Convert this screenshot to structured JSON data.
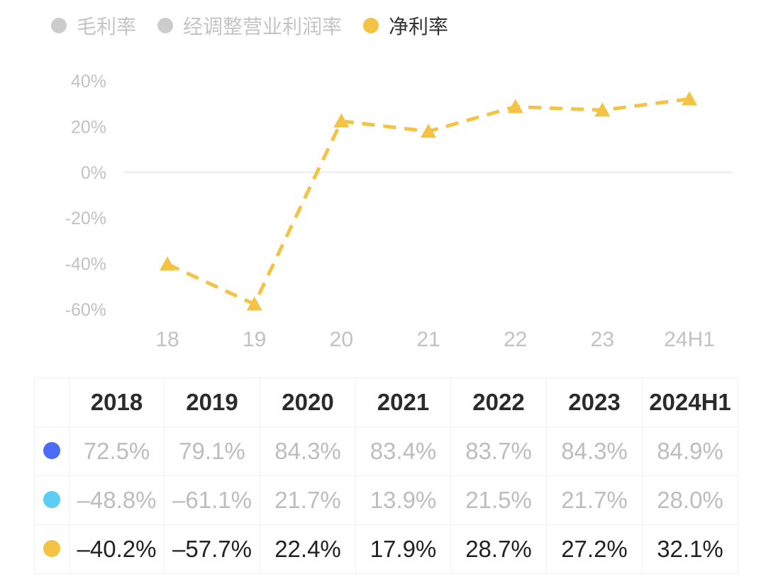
{
  "legend": [
    {
      "label": "毛利率",
      "active": false,
      "color": "#cccccc"
    },
    {
      "label": "经调整营业利润率",
      "active": false,
      "color": "#cccccc"
    },
    {
      "label": "净利率",
      "active": true,
      "color": "#f5c343"
    }
  ],
  "chart_data": {
    "type": "line",
    "categories": [
      "18",
      "19",
      "20",
      "21",
      "22",
      "23",
      "24H1"
    ],
    "series": [
      {
        "name": "净利率",
        "values": [
          -40.2,
          -57.7,
          22.4,
          17.9,
          28.7,
          27.2,
          32.1
        ],
        "color": "#f5c343",
        "style": "dashed",
        "marker": "triangle"
      }
    ],
    "y_ticks": [
      "40%",
      "20%",
      "0%",
      "-20%",
      "-40%",
      "-60%"
    ],
    "y_tick_values": [
      40,
      20,
      0,
      -20,
      -40,
      -60
    ],
    "ylim": [
      -60,
      40
    ],
    "grid": "zero-line only",
    "legend_position": "top-left"
  },
  "table": {
    "headers": [
      "2018",
      "2019",
      "2020",
      "2021",
      "2022",
      "2023",
      "2024H1"
    ],
    "rows": [
      {
        "marker_color": "#4a6cf7",
        "style": "muted",
        "cells": [
          "72.5%",
          "79.1%",
          "84.3%",
          "83.4%",
          "83.7%",
          "84.3%",
          "84.9%"
        ]
      },
      {
        "marker_color": "#5ccdf5",
        "style": "muted",
        "cells": [
          "–48.8%",
          "–61.1%",
          "21.7%",
          "13.9%",
          "21.5%",
          "21.7%",
          "28.0%"
        ]
      },
      {
        "marker_color": "#f5c343",
        "style": "dark",
        "cells": [
          "–40.2%",
          "–57.7%",
          "22.4%",
          "17.9%",
          "28.7%",
          "27.2%",
          "32.1%"
        ]
      }
    ]
  }
}
